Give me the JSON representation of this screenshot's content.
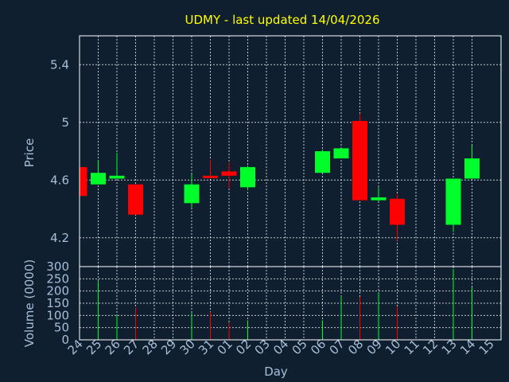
{
  "chart_data": {
    "type": "candlestick",
    "title": "UDMY - last updated 14/04/2026",
    "xlabel": "Day",
    "colors": {
      "background": "#0f1f30",
      "up": "#00ff2a",
      "down": "#ff0000",
      "title": "#ffff00",
      "axis_text": "#a6bfd9",
      "grid": "#ffffff"
    },
    "days": [
      "24",
      "25",
      "26",
      "27",
      "28",
      "29",
      "30",
      "31",
      "01",
      "02",
      "03",
      "04",
      "05",
      "06",
      "07",
      "08",
      "09",
      "10",
      "11",
      "12",
      "13",
      "14",
      "15"
    ],
    "price_panel": {
      "ylabel": "Price",
      "ylim": [
        4.0,
        5.6
      ],
      "yticks": [
        "4.2",
        "4.6",
        "5",
        "5.4"
      ],
      "grid": true,
      "candles": [
        {
          "day": "24",
          "open": 4.69,
          "high": 4.69,
          "low": 4.49,
          "close": 4.49
        },
        {
          "day": "25",
          "open": 4.57,
          "high": 4.74,
          "low": 4.57,
          "close": 4.65
        },
        {
          "day": "26",
          "open": 4.61,
          "high": 4.79,
          "low": 4.61,
          "close": 4.63
        },
        {
          "day": "27",
          "open": 4.57,
          "high": 4.57,
          "low": 4.36,
          "close": 4.36
        },
        {
          "day": "30",
          "open": 4.44,
          "high": 4.64,
          "low": 4.41,
          "close": 4.57
        },
        {
          "day": "31",
          "open": 4.63,
          "high": 4.74,
          "low": 4.61,
          "close": 4.62
        },
        {
          "day": "01",
          "open": 4.66,
          "high": 4.72,
          "low": 4.54,
          "close": 4.63
        },
        {
          "day": "02",
          "open": 4.55,
          "high": 4.7,
          "low": 4.53,
          "close": 4.69
        },
        {
          "day": "06",
          "open": 4.65,
          "high": 4.81,
          "low": 4.65,
          "close": 4.8
        },
        {
          "day": "07",
          "open": 4.75,
          "high": 4.82,
          "low": 4.75,
          "close": 4.82
        },
        {
          "day": "08",
          "open": 5.01,
          "high": 5.06,
          "low": 4.46,
          "close": 4.46
        },
        {
          "day": "09",
          "open": 4.46,
          "high": 4.55,
          "low": 4.45,
          "close": 4.48
        },
        {
          "day": "10",
          "open": 4.47,
          "high": 4.5,
          "low": 4.18,
          "close": 4.29
        },
        {
          "day": "13",
          "open": 4.29,
          "high": 4.61,
          "low": 4.24,
          "close": 4.61
        },
        {
          "day": "14",
          "open": 4.61,
          "high": 4.84,
          "low": 4.61,
          "close": 4.75
        }
      ]
    },
    "volume_panel": {
      "ylabel": "Volume (0000)",
      "ylim": [
        0,
        300
      ],
      "yticks": [
        "0",
        "50",
        "100",
        "150",
        "200",
        "250",
        "300"
      ],
      "grid": true,
      "bars": [
        {
          "day": "25",
          "value": 240,
          "dir": "up"
        },
        {
          "day": "26",
          "value": 100,
          "dir": "up"
        },
        {
          "day": "27",
          "value": 130,
          "dir": "down"
        },
        {
          "day": "30",
          "value": 110,
          "dir": "up"
        },
        {
          "day": "31",
          "value": 115,
          "dir": "down"
        },
        {
          "day": "01",
          "value": 70,
          "dir": "down"
        },
        {
          "day": "02",
          "value": 80,
          "dir": "up"
        },
        {
          "day": "06",
          "value": 80,
          "dir": "up"
        },
        {
          "day": "07",
          "value": 180,
          "dir": "up"
        },
        {
          "day": "08",
          "value": 175,
          "dir": "down"
        },
        {
          "day": "09",
          "value": 195,
          "dir": "up"
        },
        {
          "day": "10",
          "value": 135,
          "dir": "down"
        },
        {
          "day": "13",
          "value": 290,
          "dir": "up"
        },
        {
          "day": "14",
          "value": 215,
          "dir": "up"
        }
      ]
    }
  }
}
